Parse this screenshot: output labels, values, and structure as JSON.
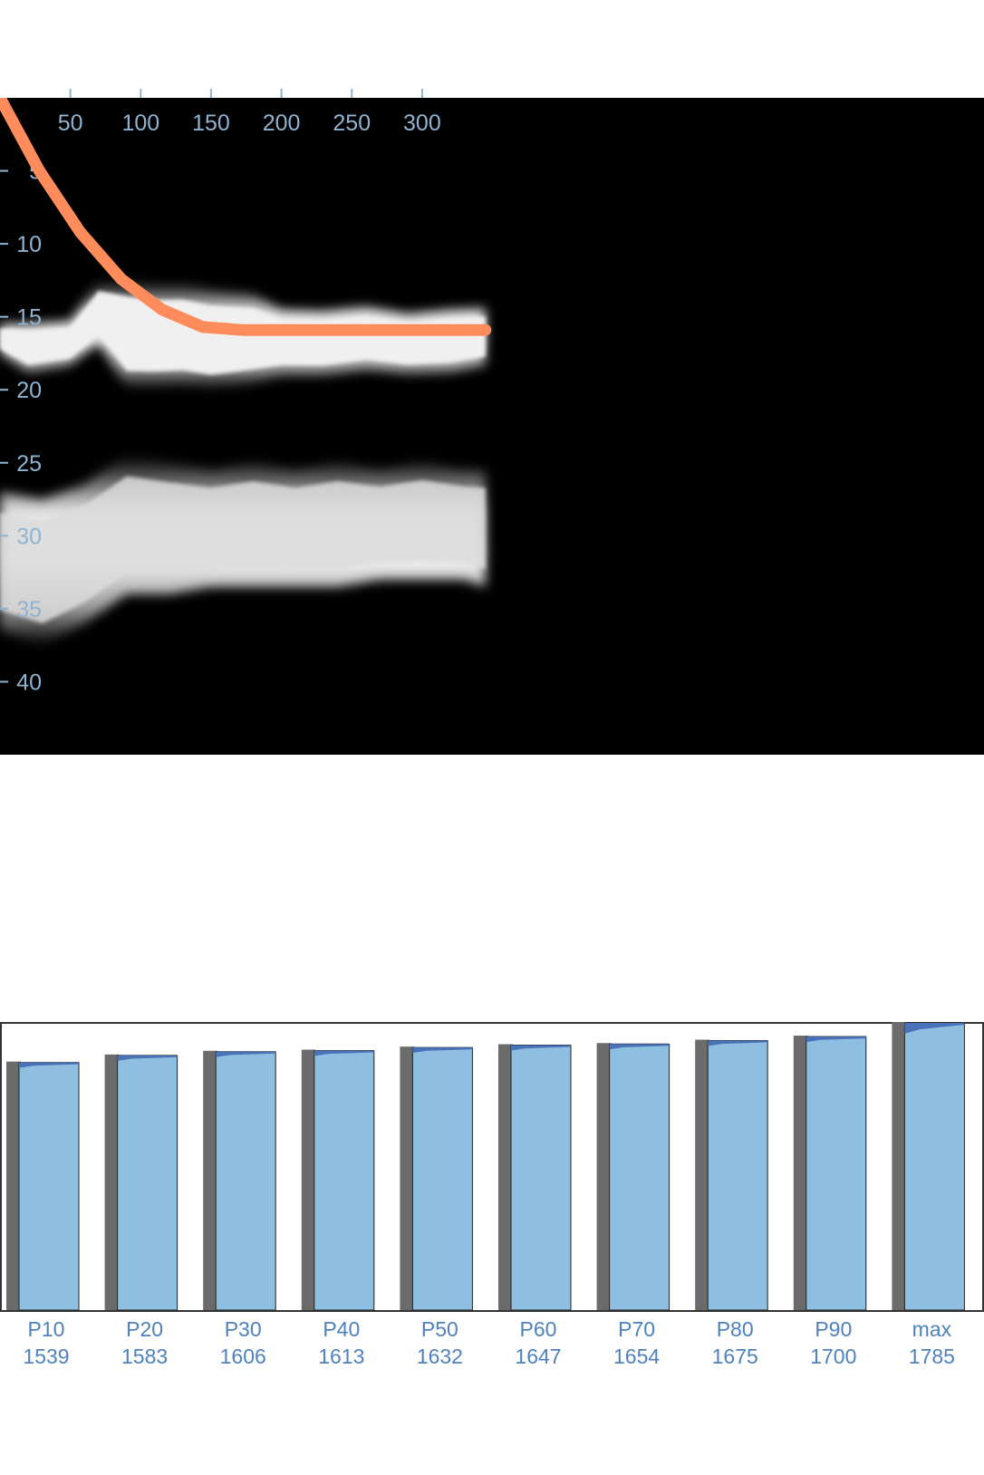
{
  "chart_data": [
    {
      "type": "heatmap",
      "x_ticks": [
        50,
        100,
        150,
        200,
        250,
        300
      ],
      "y_ticks": [
        5,
        10,
        15,
        20,
        25,
        30,
        35,
        40
      ],
      "x_range": [
        0,
        350
      ],
      "y_range": [
        0,
        45
      ],
      "colorscale": [
        "#000000",
        "#f0f0f0"
      ],
      "line_color": "#ff8c5a",
      "line": {
        "x": [
          0,
          28,
          57,
          86,
          115,
          144,
          172,
          201,
          230,
          259,
          288,
          316,
          345
        ],
        "y": [
          0,
          5.0,
          9.2,
          12.4,
          14.5,
          15.7,
          15.9,
          15.9,
          15.9,
          15.9,
          15.9,
          15.9,
          15.9
        ]
      },
      "bands": [
        {
          "label": "upper",
          "x": [
            0,
            20,
            50,
            70,
            90,
            110,
            130,
            150,
            180,
            200,
            230,
            260,
            290,
            320,
            345
          ],
          "top": [
            15.5,
            15.5,
            15.3,
            12.6,
            12.5,
            12.8,
            12.8,
            13.2,
            13.5,
            14.5,
            14.6,
            14.3,
            14.8,
            14.5,
            14.4
          ],
          "bottom": [
            17.5,
            18.8,
            18.3,
            16.8,
            19.8,
            19.8,
            19.7,
            20.0,
            19.5,
            19.0,
            19.0,
            18.6,
            18.9,
            18.8,
            18.3
          ]
        },
        {
          "label": "lower",
          "x": [
            0,
            30,
            60,
            90,
            120,
            150,
            180,
            210,
            240,
            270,
            300,
            330,
            345
          ],
          "top": [
            27.0,
            27.5,
            26.5,
            24.5,
            25.0,
            25.5,
            25.0,
            25.5,
            25.0,
            25.5,
            25.0,
            25.5,
            25.5
          ],
          "bottom": [
            36.5,
            37.5,
            36.0,
            34.0,
            34.0,
            33.5,
            33.5,
            33.5,
            33.5,
            33.0,
            33.0,
            33.0,
            33.5
          ]
        }
      ]
    },
    {
      "type": "bar",
      "categories": [
        "P10",
        "P20",
        "P30",
        "P40",
        "P50",
        "P60",
        "P70",
        "P80",
        "P90",
        "max"
      ],
      "values": [
        1539,
        1583,
        1606,
        1613,
        1632,
        1647,
        1654,
        1675,
        1700,
        1785
      ],
      "ylim": [
        0,
        1785
      ],
      "colors": {
        "bar": "#8fbfe0",
        "shadow": "#6b6b6b",
        "cap": "#4a72b8"
      }
    }
  ]
}
